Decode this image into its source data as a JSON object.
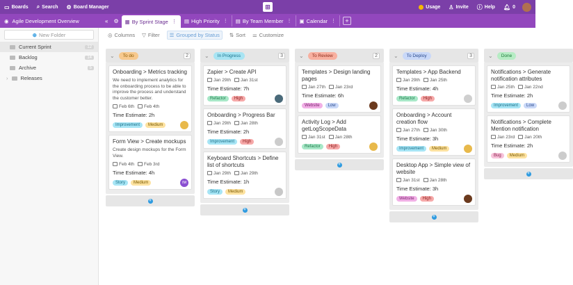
{
  "topbar": {
    "boards_label": "Boards",
    "search_label": "Search",
    "board_manager_label": "Board Manager",
    "usage_label": "Usage",
    "invite_label": "Invite",
    "help_label": "Help",
    "notifications_count": "0"
  },
  "board": {
    "title": "Agile Development Overview"
  },
  "tabs": [
    {
      "label": "By Sprint Stage"
    },
    {
      "label": "High Priority"
    },
    {
      "label": "By Team Member"
    },
    {
      "label": "Calendar"
    }
  ],
  "sidebar": {
    "new_folder_label": "New Folder",
    "items": [
      {
        "label": "Current Sprint",
        "count": "12"
      },
      {
        "label": "Backlog",
        "count": "14"
      },
      {
        "label": "Archive",
        "count": "5"
      },
      {
        "label": "Releases",
        "count": ""
      }
    ]
  },
  "toolbar": {
    "columns": "Columns",
    "filter": "Filter",
    "grouped": "Grouped by Status",
    "sort": "Sort",
    "customize": "Customize"
  },
  "columns": [
    {
      "status": "To do",
      "count": "2",
      "color": "#f7c98e",
      "text_color": "#8a5a00",
      "cards": [
        {
          "title": "Onboarding > Metrics tracking",
          "desc": "We need to implement analytics for the onboarding process to be able to improve the process and understand the customer better.",
          "start": "Feb 6th",
          "end": "Feb 4th",
          "estimate": "Time Estimate: 2h",
          "tags": [
            {
              "label": "Improvement",
              "bg": "#a7e5f5",
              "fg": "#1a6f87"
            },
            {
              "label": "Medium",
              "bg": "#fde2a0",
              "fg": "#7a5a00"
            }
          ],
          "avatar": {
            "label": "",
            "bg": "#e8b94b"
          }
        },
        {
          "title": "Form View > Create mockups",
          "desc": "Create design mockups for the Form View.",
          "start": "Feb 4th",
          "end": "Feb 3rd",
          "estimate": "Time Estimate: 4h",
          "tags": [
            {
              "label": "Story",
              "bg": "#a7e5f5",
              "fg": "#1a6f87"
            },
            {
              "label": "Medium",
              "bg": "#fde2a0",
              "fg": "#7a5a00"
            }
          ],
          "avatar": {
            "label": "IM",
            "bg": "#8a4fd1"
          }
        }
      ]
    },
    {
      "status": "In Progress",
      "count": "3",
      "color": "#a8e4f3",
      "text_color": "#16708a",
      "cards": [
        {
          "title": "Zapier > Create API",
          "desc": "",
          "start": "Jan 29th",
          "end": "Jan 31st",
          "estimate": "Time Estimate: 7h",
          "tags": [
            {
              "label": "Refactor",
              "bg": "#a8e8c8",
              "fg": "#1d7a4a"
            },
            {
              "label": "High",
              "bg": "#f6a9a9",
              "fg": "#8c1f1f"
            }
          ],
          "avatar": {
            "label": "",
            "bg": "#4a6a7a"
          }
        },
        {
          "title": "Onboarding > Progress Bar",
          "desc": "",
          "start": "Jan 29th",
          "end": "Jan 28th",
          "estimate": "Time Estimate: 2h",
          "tags": [
            {
              "label": "Improvement",
              "bg": "#a7e5f5",
              "fg": "#1a6f87"
            },
            {
              "label": "High",
              "bg": "#f6a9a9",
              "fg": "#8c1f1f"
            }
          ],
          "avatar": {
            "label": "",
            "bg": "#cccccc"
          }
        },
        {
          "title": "Keyboard Shortcuts > Define list of shortcuts",
          "desc": "",
          "start": "Jan 29th",
          "end": "Jan 29th",
          "estimate": "Time Estimate: 1h",
          "tags": [
            {
              "label": "Story",
              "bg": "#a7e5f5",
              "fg": "#1a6f87"
            },
            {
              "label": "Medium",
              "bg": "#fde2a0",
              "fg": "#7a5a00"
            }
          ],
          "avatar": {
            "label": "",
            "bg": "#c8c8c8"
          }
        }
      ]
    },
    {
      "status": "To Review",
      "count": "2",
      "color": "#f8b0a0",
      "text_color": "#8c2a1a",
      "cards": [
        {
          "title": "Templates > Design landing pages",
          "desc": "",
          "start": "Jan 27th",
          "end": "Jan 23rd",
          "estimate": "Time Estimate: 6h",
          "tags": [
            {
              "label": "Website",
              "bg": "#f1b0e6",
              "fg": "#7a1f6c"
            },
            {
              "label": "Low",
              "bg": "#c9d8f8",
              "fg": "#2a4a8c"
            }
          ],
          "avatar": {
            "label": "",
            "bg": "#6b3a1e"
          }
        },
        {
          "title": "Activity Log > Add getLogScopeData",
          "desc": "",
          "start": "Jan 31st",
          "end": "Jan 28th",
          "estimate": "",
          "tags": [
            {
              "label": "Refactor",
              "bg": "#a8e8c8",
              "fg": "#1d7a4a"
            },
            {
              "label": "High",
              "bg": "#f6a9a9",
              "fg": "#8c1f1f"
            }
          ],
          "avatar": {
            "label": "",
            "bg": "#e8b94b"
          }
        }
      ]
    },
    {
      "status": "To Deploy",
      "count": "3",
      "color": "#c9d8f8",
      "text_color": "#2a4a8c",
      "cards": [
        {
          "title": "Templates > App Backend",
          "desc": "",
          "start": "Jan 29th",
          "end": "Jan 25th",
          "estimate": "Time Estimate: 4h",
          "tags": [
            {
              "label": "Refactor",
              "bg": "#a8e8c8",
              "fg": "#1d7a4a"
            },
            {
              "label": "High",
              "bg": "#f6a9a9",
              "fg": "#8c1f1f"
            }
          ],
          "avatar": {
            "label": "",
            "bg": "#cfcfcf"
          }
        },
        {
          "title": "Onboarding > Account creation flow",
          "desc": "",
          "start": "Jan 27th",
          "end": "Jan 30th",
          "estimate": "Time Estimate: 3h",
          "tags": [
            {
              "label": "Improvement",
              "bg": "#a7e5f5",
              "fg": "#1a6f87"
            },
            {
              "label": "Medium",
              "bg": "#fde2a0",
              "fg": "#7a5a00"
            }
          ],
          "avatar": {
            "label": "",
            "bg": "#e8b94b"
          }
        },
        {
          "title": "Desktop App > Simple view of website",
          "desc": "",
          "start": "Jan 31st",
          "end": "Jan 28th",
          "estimate": "Time Estimate: 3h",
          "tags": [
            {
              "label": "Website",
              "bg": "#f1b0e6",
              "fg": "#7a1f6c"
            },
            {
              "label": "High",
              "bg": "#f6a9a9",
              "fg": "#8c1f1f"
            }
          ],
          "avatar": {
            "label": "",
            "bg": "#6b3a1e"
          }
        }
      ]
    },
    {
      "status": "Done",
      "count": "",
      "color": "#b6ecc4",
      "text_color": "#1d7a3a",
      "cards": [
        {
          "title": "Notifications > Generate notification attributes",
          "desc": "",
          "start": "Jan 25th",
          "end": "Jan 22nd",
          "estimate": "Time Estimate: 2h",
          "tags": [
            {
              "label": "Improvement",
              "bg": "#a7e5f5",
              "fg": "#1a6f87"
            },
            {
              "label": "Low",
              "bg": "#c9d8f8",
              "fg": "#2a4a8c"
            }
          ],
          "avatar": {
            "label": "",
            "bg": "#cccccc"
          }
        },
        {
          "title": "Notifications > Complete Mention notification",
          "desc": "",
          "start": "Jan 23rd",
          "end": "Jan 20th",
          "estimate": "Time Estimate: 2h",
          "tags": [
            {
              "label": "Bug",
              "bg": "#f6c1d9",
              "fg": "#8c1f4a"
            },
            {
              "label": "Medium",
              "bg": "#fde2a0",
              "fg": "#7a5a00"
            }
          ],
          "avatar": {
            "label": "",
            "bg": "#cccccc"
          }
        }
      ]
    }
  ]
}
